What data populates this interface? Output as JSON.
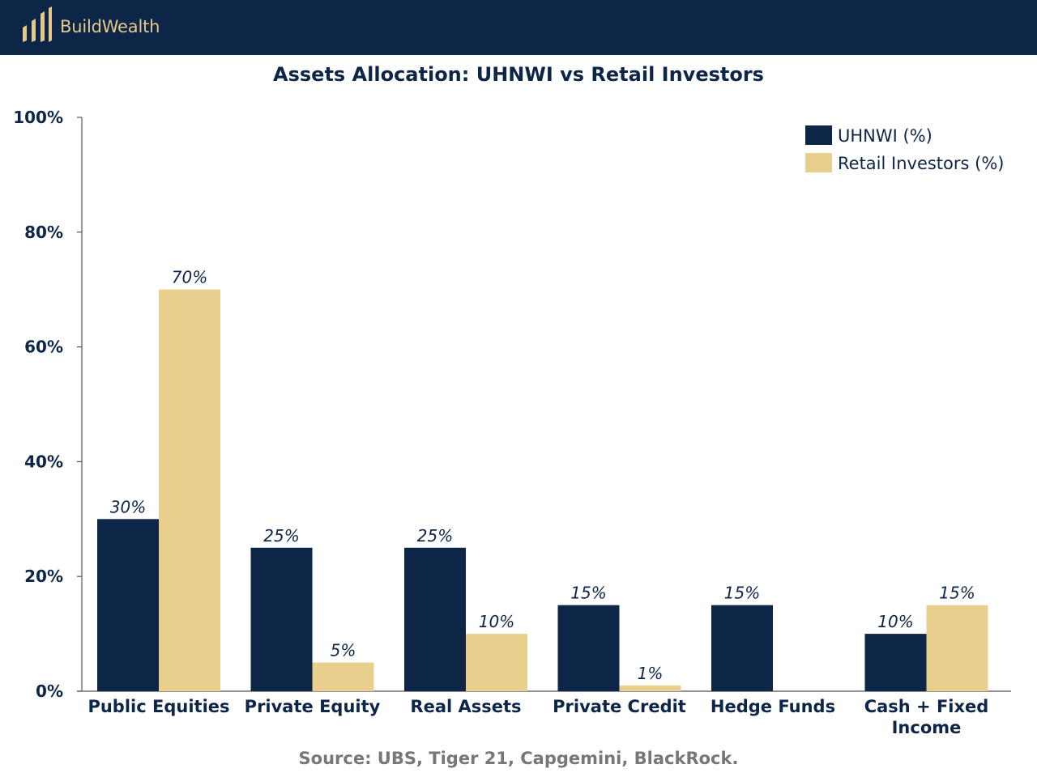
{
  "header": {
    "brand_name": "BuildWealth",
    "logo_icon": "buildwealth-bars-logo",
    "background": "#0d2647",
    "accent": "#e4c98a"
  },
  "chart_data": {
    "type": "bar",
    "title": "Assets Allocation: UHNWI vs Retail Investors",
    "xlabel": "",
    "ylabel": "",
    "ylim": [
      0,
      100
    ],
    "yticks": [
      "0%",
      "20%",
      "40%",
      "60%",
      "80%",
      "100%"
    ],
    "ytick_values": [
      0,
      20,
      40,
      60,
      80,
      100
    ],
    "categories": [
      "Public Equities",
      "Private Equity",
      "Real Assets",
      "Private Credit",
      "Hedge Funds",
      "Cash + Fixed Income"
    ],
    "series": [
      {
        "name": "UHNWI (%)",
        "color": "#0d2647",
        "values": [
          30,
          25,
          25,
          15,
          15,
          10
        ],
        "labels": [
          "30%",
          "25%",
          "25%",
          "15%",
          "15%",
          "10%"
        ]
      },
      {
        "name": "Retail Investors (%)",
        "color": "#e8cf8d",
        "values": [
          70,
          5,
          10,
          1,
          0,
          15
        ],
        "labels": [
          "70%",
          "5%",
          "10%",
          "1%",
          "",
          "15%"
        ]
      }
    ],
    "legend_position": "top-right",
    "grid": false
  },
  "footer": {
    "source": "Source: UBS, Tiger 21, Capgemini, BlackRock."
  }
}
